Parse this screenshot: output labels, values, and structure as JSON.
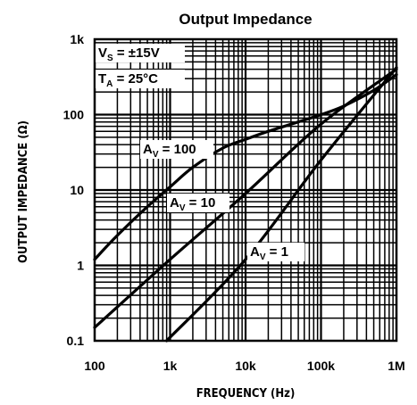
{
  "chart_data": {
    "type": "line",
    "title": "Output Impedance",
    "xlabel": "FREQUENCY (Hz)",
    "ylabel": "OUTPUT IMPEDANCE (Ω)",
    "x_scale": "log",
    "y_scale": "log",
    "xlim": [
      100,
      1000000
    ],
    "ylim": [
      0.1,
      1000
    ],
    "x_ticks": [
      {
        "value": 100,
        "label": "100"
      },
      {
        "value": 1000,
        "label": "1k"
      },
      {
        "value": 10000,
        "label": "10k"
      },
      {
        "value": 100000,
        "label": "100k"
      },
      {
        "value": 1000000,
        "label": "1M"
      }
    ],
    "y_ticks": [
      {
        "value": 0.1,
        "label": "0.1"
      },
      {
        "value": 1,
        "label": "1"
      },
      {
        "value": 10,
        "label": "10"
      },
      {
        "value": 100,
        "label": "100"
      },
      {
        "value": 1000,
        "label": "1k"
      }
    ],
    "grid": true,
    "conditions": {
      "vs": {
        "main": "V",
        "sub": "S",
        "rest": " = ±15V"
      },
      "ta": {
        "main": "T",
        "sub": "A",
        "rest": " = 25°C"
      }
    },
    "series": [
      {
        "label": {
          "main": "A",
          "sub": "V",
          "rest": " = 100"
        },
        "x": [
          100,
          200,
          500,
          1000,
          2000,
          5000,
          10000,
          20000,
          50000,
          100000,
          200000,
          500000,
          1000000
        ],
        "y": [
          1.2,
          2.5,
          6.0,
          11,
          20,
          36,
          47,
          60,
          80,
          100,
          130,
          210,
          340
        ]
      },
      {
        "label": {
          "main": "A",
          "sub": "V",
          "rest": " = 10"
        },
        "x": [
          100,
          1000,
          10000,
          100000,
          1000000
        ],
        "y": [
          0.15,
          1.2,
          9,
          75,
          400
        ]
      },
      {
        "label": {
          "main": "A",
          "sub": "V",
          "rest": " = 1"
        },
        "x": [
          900,
          10000,
          100000,
          1000000
        ],
        "y": [
          0.1,
          1.2,
          25,
          420
        ]
      }
    ]
  }
}
